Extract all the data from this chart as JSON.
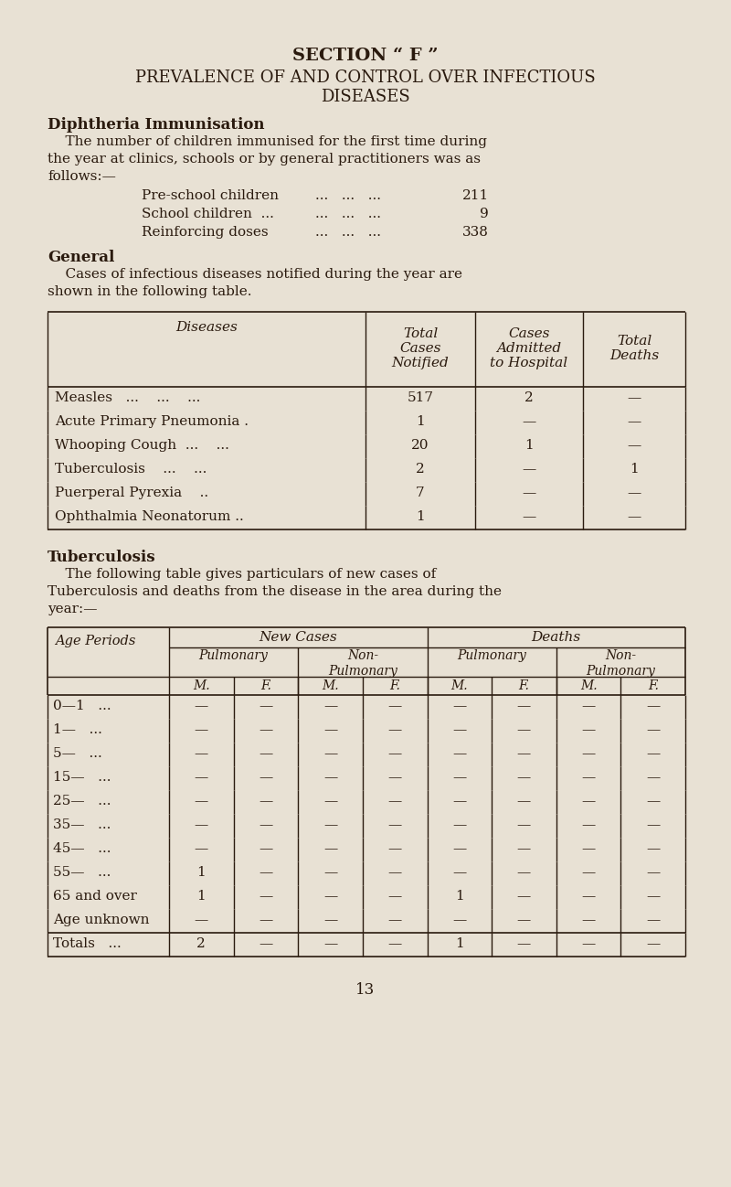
{
  "bg_color": "#e8e1d4",
  "text_color": "#2a1a0e",
  "page_number": "13",
  "section_title": "SECTION “ F ”",
  "main_title_line1": "PREVALENCE OF AND CONTROL OVER INFECTIOUS",
  "main_title_line2": "DISEASES",
  "section1_heading": "Diphtheria Immunisation",
  "immunisation_items": [
    [
      "Pre-school children",
      "...",
      "...",
      "...",
      "211"
    ],
    [
      "School children  ...",
      "...",
      "...",
      "...",
      "9"
    ],
    [
      "Reinforcing doses",
      "...",
      "...",
      "...",
      "338"
    ]
  ],
  "section2_heading": "General",
  "general_table_rows": [
    [
      "Measles   ...    ...    ...",
      "517",
      "2",
      "—"
    ],
    [
      "Acute Primary Pneumonia .",
      "1",
      "—",
      "—"
    ],
    [
      "Whooping Cough  ...    ...",
      "20",
      "1",
      "—"
    ],
    [
      "Tuberculosis    ...    ...",
      "2",
      "—",
      "1"
    ],
    [
      "Puerperal Pyrexia    ..",
      "7",
      "—",
      "—"
    ],
    [
      "Ophthalmia Neonatorum ..",
      "1",
      "—",
      "—"
    ]
  ],
  "section3_heading": "Tuberculosis",
  "tb_age_periods": [
    "0—1   ...",
    "1—   ...",
    "5—   ...",
    "15—   ...",
    "25—   ...",
    "35—   ...",
    "45—   ...",
    "55—   ...",
    "65 and over",
    "Age unknown"
  ],
  "tb_data": [
    [
      "—",
      "—",
      "—",
      "—",
      "—",
      "—",
      "—",
      "—"
    ],
    [
      "—",
      "—",
      "—",
      "—",
      "—",
      "—",
      "—",
      "—"
    ],
    [
      "—",
      "—",
      "—",
      "—",
      "—",
      "—",
      "—",
      "—"
    ],
    [
      "—",
      "—",
      "—",
      "—",
      "—",
      "—",
      "—",
      "—"
    ],
    [
      "—",
      "—",
      "—",
      "—",
      "—",
      "—",
      "—",
      "—"
    ],
    [
      "—",
      "—",
      "—",
      "—",
      "—",
      "—",
      "—",
      "—"
    ],
    [
      "—",
      "—",
      "—",
      "—",
      "—",
      "—",
      "—",
      "—"
    ],
    [
      "1",
      "—",
      "—",
      "—",
      "—",
      "—",
      "—",
      "—"
    ],
    [
      "1",
      "—",
      "—",
      "—",
      "1",
      "—",
      "—",
      "—"
    ],
    [
      "—",
      "—",
      "—",
      "—",
      "—",
      "—",
      "—",
      "—"
    ]
  ],
  "tb_totals": [
    "2",
    "—",
    "—",
    "—",
    "1",
    "—",
    "—",
    "—"
  ]
}
